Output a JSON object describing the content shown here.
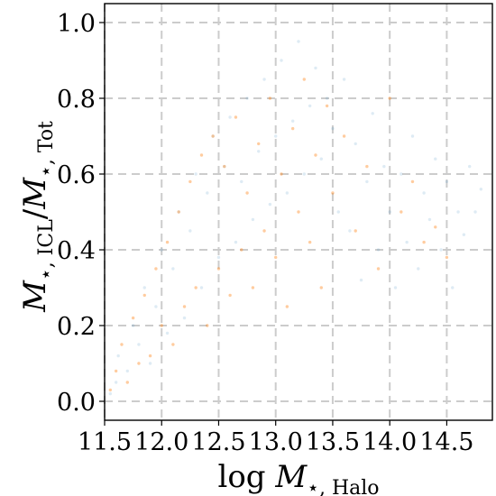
{
  "chart_data": {
    "type": "scatter",
    "title": "",
    "xlabel": {
      "prefix": "log ",
      "var": "M",
      "subscript": "⋆, Halo"
    },
    "ylabel": {
      "var1": "M",
      "sub1": "⋆, ICL",
      "slash": "/",
      "var2": "M",
      "sub2": "⋆, Tot"
    },
    "xlim": [
      11.5,
      14.9
    ],
    "ylim": [
      -0.05,
      1.05
    ],
    "x_ticks": [
      {
        "value": 11.5,
        "label": "11.5"
      },
      {
        "value": 12.0,
        "label": "12.0"
      },
      {
        "value": 12.5,
        "label": "12.5"
      },
      {
        "value": 13.0,
        "label": "13.0"
      },
      {
        "value": 13.5,
        "label": "13.5"
      },
      {
        "value": 14.0,
        "label": "14.0"
      },
      {
        "value": 14.5,
        "label": "14.5"
      }
    ],
    "y_ticks": [
      {
        "value": 0.0,
        "label": "0.0"
      },
      {
        "value": 0.2,
        "label": "0.2"
      },
      {
        "value": 0.4,
        "label": "0.4"
      },
      {
        "value": 0.6,
        "label": "0.6"
      },
      {
        "value": 0.8,
        "label": "0.8"
      },
      {
        "value": 1.0,
        "label": "1.0"
      }
    ],
    "grid": true,
    "legend": "none",
    "series": [
      {
        "color": "#1f77b4",
        "opacity": 0.15,
        "points": [
          [
            11.55,
            0.02
          ],
          [
            11.6,
            0.05
          ],
          [
            11.62,
            0.12
          ],
          [
            11.7,
            0.08
          ],
          [
            11.75,
            0.2
          ],
          [
            11.8,
            0.15
          ],
          [
            11.85,
            0.3
          ],
          [
            11.9,
            0.1
          ],
          [
            11.95,
            0.25
          ],
          [
            12.0,
            0.4
          ],
          [
            12.05,
            0.18
          ],
          [
            12.1,
            0.35
          ],
          [
            12.15,
            0.5
          ],
          [
            12.2,
            0.22
          ],
          [
            12.25,
            0.45
          ],
          [
            12.3,
            0.6
          ],
          [
            12.35,
            0.3
          ],
          [
            12.4,
            0.55
          ],
          [
            12.45,
            0.7
          ],
          [
            12.5,
            0.38
          ],
          [
            12.55,
            0.62
          ],
          [
            12.6,
            0.75
          ],
          [
            12.65,
            0.42
          ],
          [
            12.7,
            0.58
          ],
          [
            12.75,
            0.8
          ],
          [
            12.8,
            0.48
          ],
          [
            12.85,
            0.66
          ],
          [
            12.9,
            0.85
          ],
          [
            12.95,
            0.52
          ],
          [
            13.0,
            0.7
          ],
          [
            13.05,
            0.9
          ],
          [
            13.1,
            0.55
          ],
          [
            13.15,
            0.74
          ],
          [
            13.2,
            0.95
          ],
          [
            13.25,
            0.6
          ],
          [
            13.3,
            0.78
          ],
          [
            13.35,
            0.88
          ],
          [
            13.4,
            0.64
          ],
          [
            13.45,
            0.8
          ],
          [
            13.5,
            0.72
          ],
          [
            13.55,
            0.5
          ],
          [
            13.6,
            0.85
          ],
          [
            13.65,
            0.45
          ],
          [
            13.7,
            0.68
          ],
          [
            13.75,
            0.32
          ],
          [
            13.8,
            0.58
          ],
          [
            13.85,
            0.76
          ],
          [
            13.9,
            0.4
          ],
          [
            13.95,
            0.62
          ],
          [
            14.0,
            0.5
          ],
          [
            14.05,
            0.3
          ],
          [
            14.1,
            0.6
          ],
          [
            14.15,
            0.42
          ],
          [
            14.2,
            0.7
          ],
          [
            14.25,
            0.35
          ],
          [
            14.3,
            0.55
          ],
          [
            14.35,
            0.48
          ],
          [
            14.4,
            0.64
          ],
          [
            14.45,
            0.4
          ],
          [
            14.5,
            0.58
          ],
          [
            14.55,
            0.3
          ],
          [
            14.6,
            0.5
          ],
          [
            14.65,
            0.44
          ],
          [
            14.7,
            0.62
          ],
          [
            14.75,
            0.5
          ],
          [
            14.8,
            0.56
          ]
        ]
      },
      {
        "color": "#ff7f0e",
        "opacity": 0.4,
        "points": [
          [
            11.55,
            0.03
          ],
          [
            11.6,
            0.08
          ],
          [
            11.65,
            0.15
          ],
          [
            11.7,
            0.05
          ],
          [
            11.75,
            0.22
          ],
          [
            11.8,
            0.1
          ],
          [
            11.85,
            0.28
          ],
          [
            11.9,
            0.12
          ],
          [
            11.95,
            0.35
          ],
          [
            12.0,
            0.2
          ],
          [
            12.05,
            0.42
          ],
          [
            12.1,
            0.15
          ],
          [
            12.15,
            0.5
          ],
          [
            12.2,
            0.25
          ],
          [
            12.25,
            0.58
          ],
          [
            12.3,
            0.3
          ],
          [
            12.35,
            0.65
          ],
          [
            12.4,
            0.2
          ],
          [
            12.45,
            0.7
          ],
          [
            12.5,
            0.35
          ],
          [
            12.55,
            0.62
          ],
          [
            12.6,
            0.28
          ],
          [
            12.65,
            0.75
          ],
          [
            12.7,
            0.4
          ],
          [
            12.75,
            0.55
          ],
          [
            12.8,
            0.3
          ],
          [
            12.85,
            0.68
          ],
          [
            12.9,
            0.45
          ],
          [
            12.95,
            0.8
          ],
          [
            13.0,
            0.38
          ],
          [
            13.05,
            0.6
          ],
          [
            13.1,
            0.25
          ],
          [
            13.15,
            0.72
          ],
          [
            13.2,
            0.5
          ],
          [
            13.25,
            0.85
          ],
          [
            13.3,
            0.42
          ],
          [
            13.35,
            0.65
          ],
          [
            13.4,
            0.3
          ],
          [
            13.45,
            0.78
          ],
          [
            13.5,
            0.55
          ],
          [
            13.6,
            0.7
          ],
          [
            13.7,
            0.45
          ],
          [
            13.8,
            0.62
          ],
          [
            13.9,
            0.35
          ],
          [
            14.0,
            0.8
          ],
          [
            14.1,
            0.5
          ],
          [
            14.2,
            0.58
          ],
          [
            14.3,
            0.42
          ],
          [
            14.4,
            0.46
          ],
          [
            14.5,
            0.38
          ]
        ]
      }
    ]
  }
}
